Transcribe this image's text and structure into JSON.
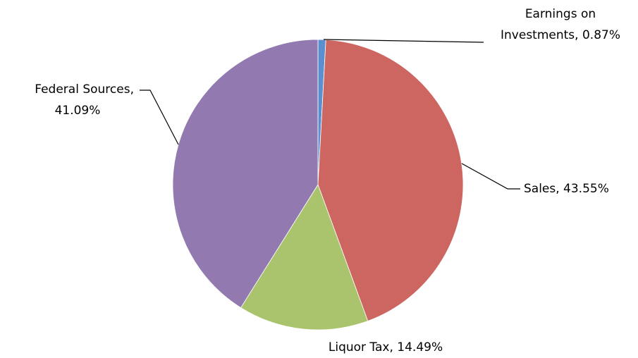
{
  "chart_data": {
    "type": "pie",
    "values": [
      0.87,
      43.55,
      14.49,
      41.09
    ],
    "labels": [
      [
        "Earnings on",
        "Investments, 0.87%"
      ],
      [
        "Sales, 43.55%"
      ],
      [
        "Liquor Tax, 14.49%"
      ],
      [
        "Federal Sources,",
        "41.09%"
      ]
    ],
    "colors": [
      "#5b8fd0",
      "#cd6660",
      "#a9c46d",
      "#927ab0"
    ]
  }
}
